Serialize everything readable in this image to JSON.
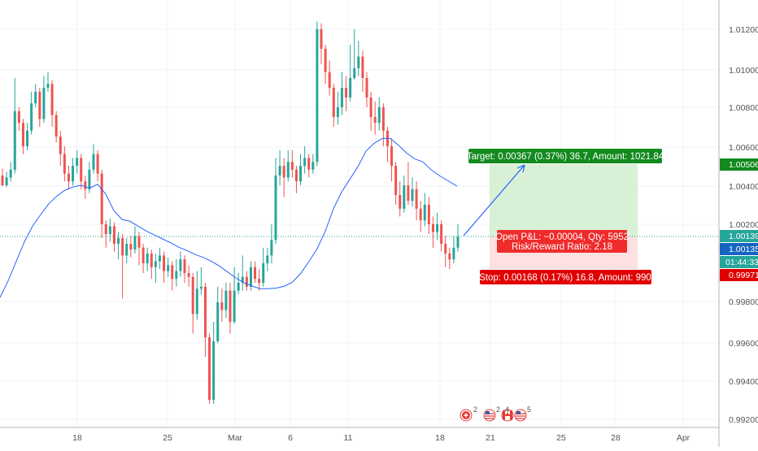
{
  "colors": {
    "bull": "#26a69a",
    "bear": "#ef5350",
    "ma": "#2962ff",
    "grid": "#f0f3fa",
    "axis_text": "#555555",
    "target_zone": "#d8f0d6",
    "stop_zone": "#fde0e0",
    "target_badge": "#138a1e",
    "stop_badge": "#e00000",
    "price_line": "#26a69a",
    "axis_border": "#b2b5be"
  },
  "y_axis": {
    "ticks": [
      "1.01200",
      "1.01000",
      "1.00800",
      "1.00600",
      "1.00400",
      "1.00200",
      "0.99800",
      "0.99600",
      "0.99400",
      "0.99200"
    ],
    "tick_values": [
      1.012,
      1.01,
      1.008,
      1.006,
      1.004,
      1.002,
      0.998,
      0.996,
      0.994,
      0.992
    ]
  },
  "x_axis": {
    "ticks": [
      "18",
      "25",
      "Mar",
      "6",
      "11",
      "18",
      "21",
      "25",
      "28",
      "Apr"
    ]
  },
  "price_labels": {
    "target": "1.00506",
    "current": "1.00139",
    "entry": "1.00135",
    "countdown": "01:44:33",
    "stop": "0.99971"
  },
  "position": {
    "target_text": "Target: 0.00367 (0.37%) 36.7, Amount: 1021.84",
    "open_pl_text": "Open P&L: −0.00004, Qty: 5952",
    "rr_text": "Risk/Reward Ratio: 2.18",
    "stop_text": "Stop: 0.00168 (0.17%) 16.8, Amount: 990"
  },
  "events": [
    {
      "flag": "CH",
      "count": "2"
    },
    {
      "flag": "US",
      "count": "2"
    },
    {
      "flag": "CA",
      "count": "4"
    },
    {
      "flag": "US",
      "count": "5"
    }
  ],
  "chart_data": {
    "type": "candlestick",
    "instrument_price_current": 1.00139,
    "ylim": [
      0.9915,
      1.0127
    ],
    "moving_average": {
      "name": "",
      "points": [
        [
          0,
          0.99825
        ],
        [
          10,
          0.9991
        ],
        [
          20,
          1.0001
        ],
        [
          30,
          1.0011
        ],
        [
          40,
          1.0019
        ],
        [
          50,
          1.0025
        ],
        [
          60,
          1.00305
        ],
        [
          70,
          1.00345
        ],
        [
          80,
          1.00375
        ],
        [
          90,
          1.00392
        ],
        [
          100,
          1.004
        ],
        [
          110,
          1.00385
        ],
        [
          120,
          1.00405
        ],
        [
          130,
          1.00355
        ],
        [
          140,
          1.0027
        ],
        [
          150,
          1.00225
        ],
        [
          160,
          1.00215
        ],
        [
          170,
          1.0019
        ],
        [
          180,
          1.00165
        ],
        [
          190,
          1.00145
        ],
        [
          200,
          1.00125
        ],
        [
          210,
          1.00105
        ],
        [
          220,
          1.00082
        ],
        [
          230,
          1.00065
        ],
        [
          240,
          1.00045
        ],
        [
          250,
          1.0003
        ],
        [
          260,
          1.0001
        ],
        [
          270,
          0.99985
        ],
        [
          280,
          0.99955
        ],
        [
          290,
          0.99925
        ],
        [
          300,
          0.999
        ],
        [
          310,
          0.99883
        ],
        [
          320,
          0.9987
        ],
        [
          330,
          0.9987
        ],
        [
          340,
          0.99873
        ],
        [
          350,
          0.99883
        ],
        [
          360,
          0.99905
        ],
        [
          370,
          0.9995
        ],
        [
          380,
          1.0001
        ],
        [
          390,
          1.00075
        ],
        [
          400,
          1.00165
        ],
        [
          410,
          1.0028
        ],
        [
          420,
          1.00365
        ],
        [
          430,
          1.0043
        ],
        [
          440,
          1.00495
        ],
        [
          450,
          1.00575
        ],
        [
          460,
          1.00615
        ],
        [
          470,
          1.0064
        ],
        [
          480,
          1.0064
        ],
        [
          490,
          1.00605
        ],
        [
          500,
          1.00565
        ],
        [
          510,
          1.00535
        ],
        [
          520,
          1.0052
        ],
        [
          530,
          1.0048
        ],
        [
          540,
          1.0045
        ],
        [
          550,
          1.00425
        ],
        [
          562,
          1.00395
        ]
      ]
    },
    "candles": [
      [
        1.0045,
        1.004,
        1.00485,
        1.00395
      ],
      [
        1.004,
        1.0044,
        1.0047,
        1.0039
      ],
      [
        1.0044,
        1.0048,
        1.0052,
        1.0042
      ],
      [
        1.0048,
        1.0078,
        1.0095,
        1.0046
      ],
      [
        1.0078,
        1.0072,
        1.008,
        1.0068
      ],
      [
        1.0072,
        1.006,
        1.0074,
        1.0056
      ],
      [
        1.006,
        1.0068,
        1.0072,
        1.0058
      ],
      [
        1.0068,
        1.0082,
        1.0088,
        1.0066
      ],
      [
        1.0082,
        1.0088,
        1.0092,
        1.008
      ],
      [
        1.0088,
        1.0074,
        1.009,
        1.007
      ],
      [
        1.0074,
        1.009,
        1.0096,
        1.0072
      ],
      [
        1.009,
        1.0092,
        1.0098,
        1.0088
      ],
      [
        1.0092,
        1.0076,
        1.0094,
        1.007
      ],
      [
        1.0076,
        1.0065,
        1.0078,
        1.0062
      ],
      [
        1.0065,
        1.0056,
        1.0068,
        1.005
      ],
      [
        1.0056,
        1.0046,
        1.006,
        1.0042
      ],
      [
        1.0046,
        1.0042,
        1.005,
        1.0038
      ],
      [
        1.0042,
        1.005,
        1.0054,
        1.004
      ],
      [
        1.005,
        1.0054,
        1.0058,
        1.0046
      ],
      [
        1.0054,
        1.0042,
        1.0056,
        1.0038
      ],
      [
        1.0042,
        1.0038,
        1.0045,
        1.0033
      ],
      [
        1.0038,
        1.0048,
        1.0052,
        1.0036
      ],
      [
        1.0048,
        1.0056,
        1.0061,
        1.0046
      ],
      [
        1.0056,
        1.0046,
        1.0058,
        1.0042
      ],
      [
        1.0046,
        1.002,
        1.0048,
        1.0013
      ],
      [
        1.002,
        1.0015,
        1.0022,
        1.0008
      ],
      [
        1.0015,
        1.0019,
        1.0023,
        1.0011
      ],
      [
        1.0019,
        1.001,
        1.0021,
        1.0006
      ],
      [
        1.001,
        1.0013,
        1.0016,
        1.0002
      ],
      [
        1.0013,
        1.0004,
        1.0015,
        0.9982
      ],
      [
        1.0004,
        1.001,
        1.0013,
        1.0
      ],
      [
        1.001,
        1.0007,
        1.0014,
        1.0003
      ],
      [
        1.0007,
        1.0014,
        1.0019,
        1.0005
      ],
      [
        1.0014,
        1.0008,
        1.0016,
        0.9999
      ],
      [
        1.0008,
        1.0,
        1.001,
        0.9995
      ],
      [
        1.0,
        1.0005,
        1.0008,
        0.9996
      ],
      [
        1.0005,
        0.9998,
        1.0007,
        0.9992
      ],
      [
        0.9998,
        1.0001,
        1.0005,
        0.999
      ],
      [
        1.0001,
        1.0004,
        1.0008,
        0.9997
      ],
      [
        1.0004,
        0.9996,
        1.0006,
        0.999
      ],
      [
        0.9996,
        0.9999,
        1.0003,
        0.9993
      ],
      [
        0.9999,
        0.9992,
        1.0001,
        0.9986
      ],
      [
        0.9992,
        0.9996,
        1.0002,
        0.9988
      ],
      [
        0.9996,
        1.0002,
        1.0006,
        0.9993
      ],
      [
        1.0002,
        0.9995,
        1.0004,
        0.999
      ],
      [
        0.9995,
        0.9993,
        0.9999,
        0.9988
      ],
      [
        0.9993,
        0.9974,
        0.9995,
        0.9964
      ],
      [
        0.9974,
        0.9987,
        0.9996,
        0.9971
      ],
      [
        0.9987,
        0.9988,
        0.9998,
        0.9984
      ],
      [
        0.9988,
        0.9962,
        0.999,
        0.9952
      ],
      [
        0.9962,
        0.993,
        0.9964,
        0.9928
      ],
      [
        0.993,
        0.996,
        0.997,
        0.9928
      ],
      [
        0.996,
        0.998,
        0.9988,
        0.9959
      ],
      [
        0.998,
        0.9976,
        0.9987,
        0.997
      ],
      [
        0.9976,
        0.9986,
        0.999,
        0.9972
      ],
      [
        0.9986,
        0.997,
        0.999,
        0.9964
      ],
      [
        0.997,
        0.9986,
        0.9998,
        0.9969
      ],
      [
        0.9986,
        0.999,
        0.9995,
        0.9984
      ],
      [
        0.999,
        0.9993,
        1.0004,
        0.9986
      ],
      [
        0.9993,
        0.9988,
        0.9996,
        0.9986
      ],
      [
        0.9988,
        0.9998,
        1.0001,
        0.9986
      ],
      [
        0.9998,
        0.9992,
        1.0001,
        0.999
      ],
      [
        0.9992,
        0.999,
        0.9997,
        0.9986
      ],
      [
        0.999,
        1.0,
        1.0008,
        0.9988
      ],
      [
        1.0,
        1.0004,
        1.0008,
        0.9996
      ],
      [
        1.0004,
        1.0012,
        1.002,
        1.0
      ],
      [
        1.0012,
        1.0045,
        1.0054,
        1.001
      ],
      [
        1.0045,
        1.005,
        1.0058,
        1.004
      ],
      [
        1.005,
        1.0044,
        1.0054,
        1.0034
      ],
      [
        1.0044,
        1.0052,
        1.0058,
        1.0042
      ],
      [
        1.0052,
        1.0048,
        1.0058,
        1.0044
      ],
      [
        1.0048,
        1.0042,
        1.005,
        1.0036
      ],
      [
        1.0042,
        1.005,
        1.0056,
        1.004
      ],
      [
        1.005,
        1.0054,
        1.006,
        1.0046
      ],
      [
        1.0054,
        1.0048,
        1.0056,
        1.0044
      ],
      [
        1.0048,
        1.0052,
        1.0056,
        1.0046
      ],
      [
        1.0052,
        1.012,
        1.0124,
        1.005
      ],
      [
        1.012,
        1.011,
        1.0123,
        1.0102
      ],
      [
        1.011,
        1.0098,
        1.0112,
        1.0092
      ],
      [
        1.0098,
        1.009,
        1.0104,
        1.0086
      ],
      [
        1.009,
        1.0075,
        1.0092,
        1.007
      ],
      [
        1.0075,
        1.008,
        1.0088,
        1.0071
      ],
      [
        1.008,
        1.009,
        1.0098,
        1.0076
      ],
      [
        1.009,
        1.0085,
        1.0096,
        1.0078
      ],
      [
        1.0085,
        1.0095,
        1.0112,
        1.0083
      ],
      [
        1.0095,
        1.01,
        1.012,
        1.0094
      ],
      [
        1.01,
        1.0106,
        1.0114,
        1.0096
      ],
      [
        1.0106,
        1.0095,
        1.0109,
        1.0088
      ],
      [
        1.0095,
        1.0085,
        1.0098,
        1.008
      ],
      [
        1.0085,
        1.0075,
        1.0088,
        1.0068
      ],
      [
        1.0075,
        1.0072,
        1.0083,
        1.0066
      ],
      [
        1.0072,
        1.008,
        1.0085,
        1.0068
      ],
      [
        1.008,
        1.0068,
        1.0082,
        1.006
      ],
      [
        1.0068,
        1.006,
        1.007,
        1.0052
      ],
      [
        1.006,
        1.005,
        1.0064,
        1.0042
      ],
      [
        1.005,
        1.0035,
        1.0052,
        1.003
      ],
      [
        1.0035,
        1.0028,
        1.0042,
        1.0024
      ],
      [
        1.0028,
        1.004,
        1.0045,
        1.0026
      ],
      [
        1.004,
        1.0032,
        1.0052,
        1.003
      ],
      [
        1.0032,
        1.0038,
        1.0044,
        1.0029
      ],
      [
        1.0038,
        1.0028,
        1.0042,
        1.0022
      ],
      [
        1.0028,
        1.0022,
        1.0032,
        1.0016
      ],
      [
        1.0022,
        1.003,
        1.0036,
        1.0019
      ],
      [
        1.003,
        1.002,
        1.0034,
        1.0015
      ],
      [
        1.002,
        1.0016,
        1.0024,
        1.0008
      ],
      [
        1.0016,
        1.002,
        1.0026,
        1.0012
      ],
      [
        1.002,
        1.001,
        1.0022,
        1.0006
      ],
      [
        1.001,
        1.0005,
        1.0014,
        0.9998
      ],
      [
        1.0005,
        1.0002,
        1.0008,
        0.9997
      ],
      [
        1.0002,
        1.0008,
        1.0014,
        1.0
      ],
      [
        1.0008,
        1.00135,
        1.002,
        1.0006
      ]
    ]
  }
}
